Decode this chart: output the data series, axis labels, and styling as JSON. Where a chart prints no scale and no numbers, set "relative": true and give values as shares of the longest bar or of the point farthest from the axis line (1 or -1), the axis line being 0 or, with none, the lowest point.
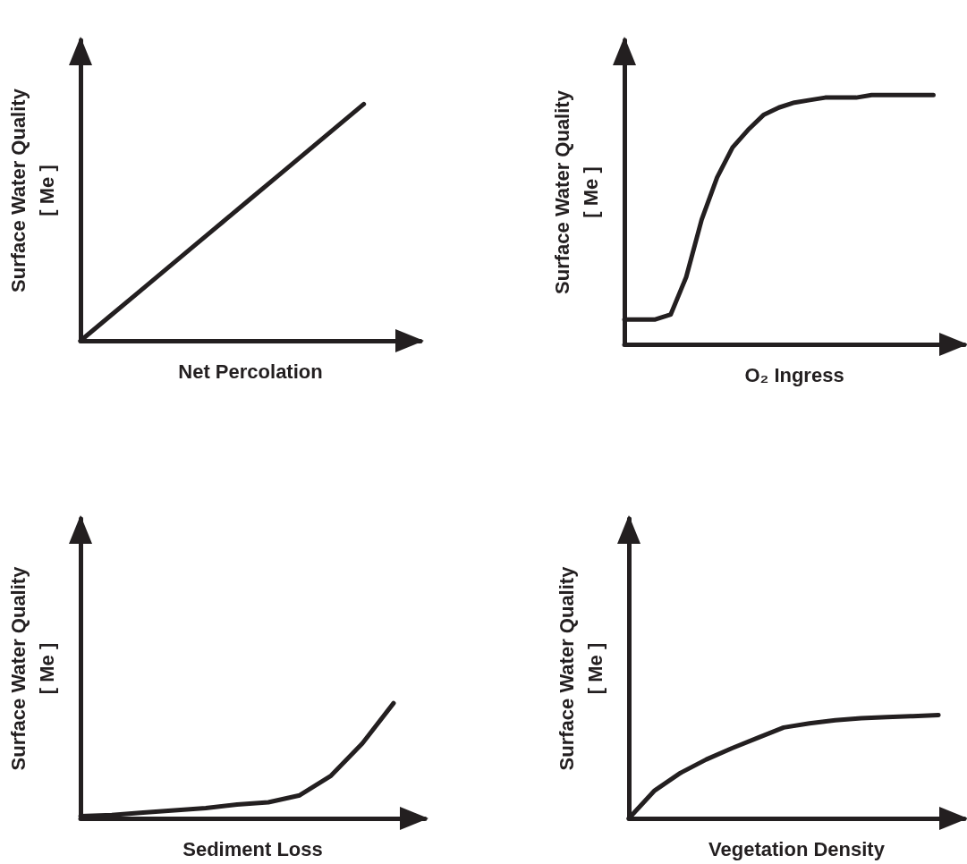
{
  "chart_data": [
    {
      "type": "line",
      "relative": true,
      "xlabel": "Net Percolation",
      "ylabel": "Surface Water Quality\n[ Me ]",
      "color": "#231f20",
      "marker": "none",
      "grid": false,
      "categories": [
        null,
        null,
        null,
        null,
        null,
        null,
        null,
        null,
        null,
        null,
        null,
        null,
        null
      ],
      "values": [
        0,
        0.1,
        0.2,
        0.3,
        0.4,
        0.5,
        0.6,
        0.7,
        0.8,
        0.9,
        1,
        null,
        null
      ]
    },
    {
      "type": "line",
      "relative": true,
      "xlabel": "O₂ Ingress",
      "ylabel": "Surface Water Quality\n[ Me ]",
      "color": "#231f20",
      "marker": "none",
      "grid": false,
      "categories": [
        null,
        null,
        null,
        null,
        null,
        null,
        null,
        null,
        null,
        null,
        null,
        null,
        null,
        null,
        null,
        null,
        null,
        null,
        null,
        null,
        null,
        null,
        null
      ],
      "values": [
        0.1,
        0.1,
        0.1,
        0.12,
        0.27,
        0.5,
        0.67,
        0.79,
        0.86,
        0.92,
        0.95,
        0.97,
        0.98,
        0.99,
        0.99,
        0.99,
        1,
        1,
        1,
        1,
        1,
        null,
        null
      ]
    },
    {
      "type": "line",
      "relative": true,
      "xlabel": "Sediment Loss",
      "ylabel": "Surface Water Quality\n[ Me ]",
      "color": "#231f20",
      "marker": "none",
      "grid": false,
      "categories": [
        null,
        null,
        null,
        null,
        null,
        null,
        null,
        null,
        null,
        null,
        null,
        null
      ],
      "values": [
        0.02,
        0.03,
        0.05,
        0.07,
        0.09,
        0.12,
        0.14,
        0.2,
        0.37,
        0.65,
        1,
        null
      ]
    },
    {
      "type": "line",
      "relative": true,
      "xlabel": "Vegetation Density",
      "ylabel": "Surface Water Quality\n[ Me ]",
      "color": "#231f20",
      "marker": "none",
      "grid": false,
      "categories": [
        null,
        null,
        null,
        null,
        null,
        null,
        null,
        null,
        null,
        null,
        null,
        null,
        null,
        null
      ],
      "values": [
        0,
        0.27,
        0.44,
        0.57,
        0.68,
        0.78,
        0.88,
        0.92,
        0.95,
        0.97,
        0.98,
        0.99,
        1,
        null
      ]
    }
  ]
}
